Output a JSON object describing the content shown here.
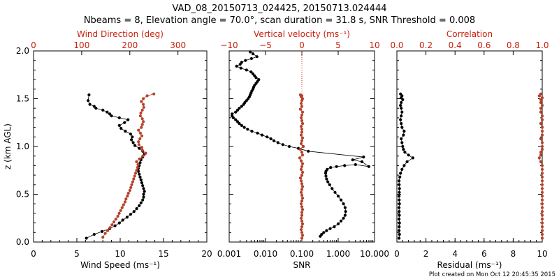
{
  "title_line1": "VAD_08_20150713_024425, 20150713.024444",
  "title_line2": "Nbeams = 8, Elevation angle = 70.0°, scan duration = 31.8 s, SNR Threshold = 0.008",
  "footer": "Plot created on Mon Oct 12 20:45:35 2015",
  "colors": {
    "black": "#000000",
    "red": "#c8200e",
    "series_red": "#b5432a"
  },
  "chart_data": [
    {
      "type": "scatter",
      "panel": "wind",
      "ylabel": "z (km AGL)",
      "ylim": [
        0,
        2.0
      ],
      "y_ticks": [
        "0.0",
        "0.5",
        "1.0",
        "1.5",
        "2.0"
      ],
      "xlabel": "Wind Speed (ms⁻¹)",
      "xlim": [
        0,
        20
      ],
      "x_ticks": [
        "0",
        "5",
        "10",
        "15",
        "20"
      ],
      "top_xlabel": "Wind Direction (deg)",
      "top_xlim": [
        0,
        360
      ],
      "top_x_ticks": [
        "0",
        "100",
        "200",
        "300"
      ],
      "series": [
        {
          "name": "Wind Speed",
          "color": "black",
          "axis": "bottom",
          "x": [
            6.1,
            7.0,
            7.9,
            8.8,
            9.4,
            9.9,
            10.3,
            10.8,
            11.2,
            11.6,
            11.9,
            12.2,
            12.4,
            12.6,
            12.7,
            12.7,
            12.8,
            12.7,
            12.6,
            12.5,
            12.4,
            12.3,
            12.2,
            12.1,
            12.1,
            12.2,
            12.3,
            12.4,
            12.6,
            12.8,
            12.6,
            12.2,
            11.7,
            11.5,
            11.3,
            11.4,
            11.2,
            10.6,
            10.1,
            9.9,
            10.5,
            10.9,
            9.9,
            9.0,
            8.8,
            8.5,
            8.0,
            7.2,
            7.0,
            6.5,
            6.3,
            6.4
          ],
          "y": [
            0.04,
            0.08,
            0.11,
            0.14,
            0.17,
            0.2,
            0.23,
            0.26,
            0.29,
            0.32,
            0.35,
            0.38,
            0.41,
            0.44,
            0.47,
            0.5,
            0.53,
            0.56,
            0.59,
            0.62,
            0.65,
            0.68,
            0.71,
            0.74,
            0.77,
            0.8,
            0.83,
            0.86,
            0.89,
            0.92,
            0.95,
            0.98,
            1.01,
            1.04,
            1.07,
            1.1,
            1.13,
            1.16,
            1.19,
            1.22,
            1.25,
            1.28,
            1.3,
            1.32,
            1.34,
            1.36,
            1.38,
            1.4,
            1.42,
            1.44,
            1.48,
            1.54
          ]
        },
        {
          "name": "Wind Direction",
          "color": "series_red",
          "axis": "top",
          "x": [
            144,
            149,
            154,
            159,
            163,
            167,
            171,
            175,
            178,
            181,
            184,
            187,
            190,
            192,
            195,
            197,
            200,
            202,
            204,
            206,
            208,
            210,
            212,
            214,
            216,
            217,
            214,
            220,
            227,
            233,
            226,
            225,
            219,
            218,
            221,
            225,
            222,
            218,
            224,
            226,
            228,
            226,
            222,
            223,
            226,
            229,
            228,
            224,
            228,
            236,
            250
          ],
          "y": [
            0.05,
            0.09,
            0.12,
            0.15,
            0.18,
            0.21,
            0.24,
            0.27,
            0.3,
            0.33,
            0.36,
            0.39,
            0.42,
            0.45,
            0.48,
            0.51,
            0.54,
            0.57,
            0.6,
            0.63,
            0.66,
            0.69,
            0.72,
            0.75,
            0.78,
            0.81,
            0.84,
            0.87,
            0.9,
            0.93,
            0.96,
            0.99,
            1.02,
            1.05,
            1.08,
            1.11,
            1.14,
            1.17,
            1.2,
            1.23,
            1.26,
            1.29,
            1.32,
            1.35,
            1.38,
            1.41,
            1.44,
            1.47,
            1.5,
            1.53,
            1.55
          ]
        }
      ]
    },
    {
      "type": "scatter",
      "panel": "velocity",
      "xlabel": "SNR",
      "xlim": [
        0.001,
        10
      ],
      "x_log": true,
      "x_ticks": [
        "0.001",
        "0.010",
        "0.100",
        "1.000",
        "10.000"
      ],
      "top_xlabel": "Vertical velocity (ms⁻¹)",
      "top_xlim": [
        -10,
        10
      ],
      "top_x_ticks": [
        "−10",
        "−5",
        "0",
        "5",
        "10"
      ],
      "ylim": [
        0,
        2.0
      ],
      "zero_line": 0,
      "series": [
        {
          "name": "SNR",
          "color": "black",
          "axis": "bottom",
          "x": [
            0.32,
            0.35,
            0.4,
            0.48,
            0.6,
            0.78,
            1.0,
            1.2,
            1.4,
            1.55,
            1.6,
            1.55,
            1.4,
            1.2,
            1.0,
            0.82,
            0.68,
            0.58,
            0.52,
            0.48,
            0.46,
            0.45,
            0.46,
            0.5,
            0.62,
            0.9,
            1.5,
            3.0,
            7.0,
            4.5,
            2.5,
            5.0,
            0.15,
            0.08,
            0.045,
            0.03,
            0.022,
            0.017,
            0.014,
            0.011,
            0.008,
            0.006,
            0.0042,
            0.0032,
            0.0026,
            0.0022,
            0.0019,
            0.0017,
            0.0015,
            0.0013,
            0.0012,
            0.0012,
            0.0015,
            0.0017,
            0.0019,
            0.0022,
            0.0025,
            0.0027,
            0.003,
            0.0033,
            0.0036,
            0.0038,
            0.004,
            0.0042,
            0.0045,
            0.0047,
            0.005,
            0.0055,
            0.006,
            0.0065,
            0.0055,
            0.005,
            0.0045,
            0.004,
            0.003,
            0.0021,
            0.0016,
            0.002,
            0.0022,
            0.0028,
            0.0041,
            0.0058,
            0.0045,
            0.0038
          ],
          "y": [
            0.06,
            0.08,
            0.1,
            0.12,
            0.14,
            0.16,
            0.19,
            0.22,
            0.25,
            0.28,
            0.32,
            0.36,
            0.4,
            0.44,
            0.48,
            0.52,
            0.56,
            0.6,
            0.63,
            0.66,
            0.69,
            0.72,
            0.74,
            0.76,
            0.78,
            0.79,
            0.8,
            0.81,
            0.79,
            0.84,
            0.86,
            0.89,
            0.95,
            0.98,
            1.0,
            1.02,
            1.04,
            1.06,
            1.08,
            1.1,
            1.12,
            1.14,
            1.16,
            1.18,
            1.2,
            1.22,
            1.24,
            1.26,
            1.28,
            1.3,
            1.32,
            1.34,
            1.36,
            1.38,
            1.4,
            1.42,
            1.44,
            1.46,
            1.48,
            1.5,
            1.52,
            1.54,
            1.56,
            1.58,
            1.6,
            1.62,
            1.64,
            1.66,
            1.68,
            1.7,
            1.72,
            1.74,
            1.76,
            1.78,
            1.8,
            1.82,
            1.84,
            1.86,
            1.88,
            1.9,
            1.92,
            1.94,
            1.97,
            1.99
          ]
        },
        {
          "name": "Vertical velocity",
          "color": "series_red",
          "axis": "top",
          "x": [
            0.0,
            0.1,
            0.0,
            -0.1,
            0.0,
            0.1,
            0.0,
            -0.1,
            0.0,
            0.0,
            0.1,
            0.0,
            -0.1,
            0.0,
            0.1,
            0.0,
            -0.1,
            0.0,
            0.1,
            0.0,
            -0.1,
            -0.2,
            0.0,
            0.1,
            -0.1,
            0.0,
            0.1,
            -0.1,
            -0.3,
            0.1,
            0.0,
            -0.2,
            0.2,
            -0.1,
            0.0,
            0.1,
            -0.1,
            0.0,
            0.0,
            -0.1,
            0.1,
            0.0,
            -0.1,
            0.0,
            0.1,
            -0.2,
            0.0,
            -0.1,
            0.0,
            0.1,
            -0.1,
            0.0,
            -0.2
          ],
          "y": [
            0.04,
            0.07,
            0.1,
            0.13,
            0.16,
            0.19,
            0.22,
            0.25,
            0.28,
            0.31,
            0.34,
            0.37,
            0.4,
            0.43,
            0.46,
            0.49,
            0.52,
            0.55,
            0.58,
            0.61,
            0.64,
            0.67,
            0.7,
            0.73,
            0.76,
            0.79,
            0.82,
            0.85,
            0.88,
            0.91,
            0.94,
            0.97,
            1.0,
            1.03,
            1.06,
            1.09,
            1.12,
            1.15,
            1.18,
            1.21,
            1.24,
            1.27,
            1.3,
            1.33,
            1.36,
            1.39,
            1.42,
            1.45,
            1.48,
            1.5,
            1.52,
            1.53,
            1.54
          ]
        }
      ]
    },
    {
      "type": "scatter",
      "panel": "residual",
      "xlabel": "Residual (ms⁻¹)",
      "xlim": [
        0,
        10
      ],
      "x_ticks": [
        "0",
        "2",
        "4",
        "6",
        "8",
        "10"
      ],
      "top_xlabel": "Correlation",
      "top_xlim": [
        0,
        1.0
      ],
      "top_x_ticks": [
        "0.0",
        "0.2",
        "0.4",
        "0.6",
        "0.8",
        "1.0"
      ],
      "ylim": [
        0,
        2.0
      ],
      "series": [
        {
          "name": "Residual",
          "color": "black",
          "axis": "bottom",
          "x": [
            0.15,
            0.18,
            0.15,
            0.16,
            0.18,
            0.15,
            0.17,
            0.16,
            0.15,
            0.18,
            0.16,
            0.15,
            0.17,
            0.18,
            0.16,
            0.15,
            0.2,
            0.25,
            0.35,
            0.5,
            0.7,
            1.1,
            0.8,
            0.55,
            0.45,
            0.4,
            0.35,
            0.3,
            0.45,
            0.5,
            0.35,
            0.3,
            0.25,
            0.3,
            0.35,
            0.3,
            0.25,
            0.3,
            0.4,
            0.3,
            0.35,
            0.25
          ],
          "y": [
            0.04,
            0.08,
            0.12,
            0.16,
            0.2,
            0.24,
            0.28,
            0.32,
            0.36,
            0.4,
            0.44,
            0.48,
            0.52,
            0.56,
            0.6,
            0.64,
            0.68,
            0.72,
            0.76,
            0.8,
            0.84,
            0.88,
            0.91,
            0.94,
            0.97,
            1.0,
            1.04,
            1.08,
            1.12,
            1.16,
            1.2,
            1.24,
            1.28,
            1.32,
            1.36,
            1.4,
            1.43,
            1.46,
            1.49,
            1.51,
            1.53,
            1.55
          ]
        },
        {
          "name": "Correlation",
          "color": "series_red",
          "axis": "top",
          "x": [
            1.0,
            1.0,
            1.0,
            1.0,
            1.0,
            1.0,
            1.0,
            1.0,
            1.0,
            1.0,
            1.0,
            1.0,
            1.0,
            1.0,
            1.0,
            1.0,
            1.0,
            1.0,
            1.0,
            1.0,
            0.99,
            0.98,
            0.99,
            0.99,
            1.0,
            1.0,
            1.0,
            0.99,
            1.0,
            1.0,
            1.0,
            0.99,
            1.0,
            1.0,
            0.99,
            0.99,
            1.0,
            0.99,
            0.99,
            1.0,
            0.98,
            0.99
          ],
          "y": [
            0.04,
            0.08,
            0.12,
            0.16,
            0.2,
            0.24,
            0.28,
            0.32,
            0.36,
            0.4,
            0.44,
            0.48,
            0.52,
            0.56,
            0.6,
            0.64,
            0.68,
            0.72,
            0.76,
            0.8,
            0.84,
            0.88,
            0.91,
            0.94,
            0.97,
            1.0,
            1.04,
            1.08,
            1.12,
            1.16,
            1.2,
            1.24,
            1.28,
            1.32,
            1.36,
            1.4,
            1.43,
            1.46,
            1.49,
            1.51,
            1.53,
            1.55
          ]
        }
      ]
    }
  ]
}
